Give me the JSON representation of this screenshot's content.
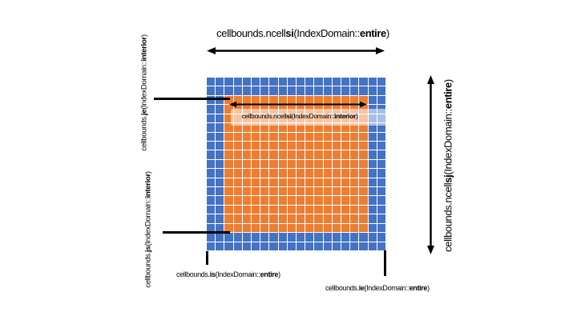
{
  "figure": {
    "background": "#ffffff",
    "annotation_color": "#000000",
    "overlay_color": "rgba(255,255,255,0.55)"
  },
  "grid": {
    "cols": 20,
    "rows": 19,
    "halo_thickness": 2,
    "entire_color": "#4472C4",
    "interior_color": "#ED7D31",
    "gridline_color": "#ffffff"
  },
  "labels": {
    "ncellsi_entire": {
      "p0": "cellbounds.ncell",
      "b1": "si",
      "p2": "(IndexDomain::",
      "b3": "entire",
      "p4": ")"
    },
    "ncellsi_interior": {
      "p0": "cellbounds.ncell",
      "b1": "si",
      "p2": "(IndexDomain::",
      "b3": "interior",
      "p4": ")"
    },
    "ncellsj_entire": {
      "p0": "cellbounds.ncell",
      "b1": "sj",
      "p2": "(IndexDomain::",
      "b3": "entire",
      "p4": ")"
    },
    "je_interior": {
      "p0": "cellbounds.",
      "b1": "je",
      "p2": "(IndexDomain::",
      "b3": "interior",
      "p4": ")"
    },
    "js_interior": {
      "p0": "cellbounds.",
      "b1": "js",
      "p2": "(IndexDomain::",
      "b3": "interior",
      "p4": ")"
    },
    "is_entire": {
      "p0": "cellbounds.",
      "b1": "is",
      "p2": "(IndexDomain::",
      "b3": "entire",
      "p4": ")"
    },
    "ie_entire": {
      "p0": "cellbounds.",
      "b1": "ie",
      "p2": "(IndexDomain::",
      "b3": "entire",
      "p4": ")"
    }
  }
}
